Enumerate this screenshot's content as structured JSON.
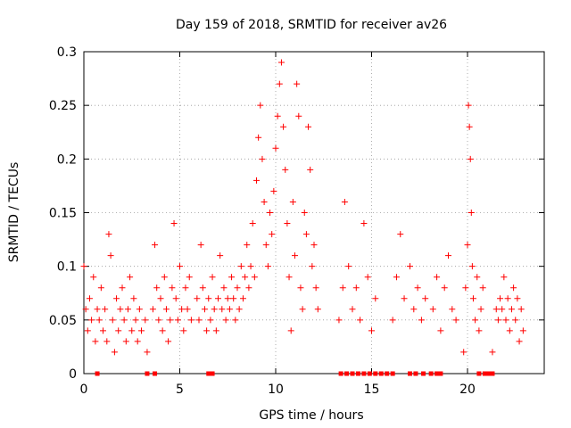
{
  "chart_data": {
    "type": "scatter",
    "title": "Day 159 of 2018, SRMTID for receiver av26",
    "xlabel": "GPS time / hours",
    "ylabel": "SRMTID / TECUs",
    "xlim": [
      0,
      24
    ],
    "ylim": [
      0,
      0.3
    ],
    "x_ticks": [
      0,
      5,
      10,
      15,
      20
    ],
    "x_tick_labels": [
      "0",
      "5",
      "10",
      "15",
      "20"
    ],
    "y_ticks": [
      0,
      0.05,
      0.1,
      0.15,
      0.2,
      0.25,
      0.3
    ],
    "y_tick_labels": [
      "0",
      "0.05",
      "0.1",
      "0.15",
      "0.2",
      "0.25",
      "0.3"
    ],
    "grid": true,
    "legend": "none",
    "colors": {
      "marker": "#ff0000",
      "grid": "#999999",
      "axis": "#000000"
    },
    "series": [
      {
        "name": "SRMTID",
        "marker": "plus",
        "points": [
          [
            0.0,
            0.1
          ],
          [
            0.1,
            0.06
          ],
          [
            0.2,
            0.04
          ],
          [
            0.3,
            0.07
          ],
          [
            0.4,
            0.05
          ],
          [
            0.5,
            0.09
          ],
          [
            0.6,
            0.03
          ],
          [
            0.7,
            0.06
          ],
          [
            0.8,
            0.05
          ],
          [
            0.9,
            0.08
          ],
          [
            1.0,
            0.04
          ],
          [
            1.1,
            0.06
          ],
          [
            1.2,
            0.03
          ],
          [
            1.3,
            0.13
          ],
          [
            1.4,
            0.11
          ],
          [
            1.5,
            0.05
          ],
          [
            1.6,
            0.02
          ],
          [
            1.7,
            0.07
          ],
          [
            1.8,
            0.04
          ],
          [
            1.9,
            0.06
          ],
          [
            2.0,
            0.08
          ],
          [
            2.1,
            0.05
          ],
          [
            2.2,
            0.03
          ],
          [
            2.3,
            0.06
          ],
          [
            2.4,
            0.09
          ],
          [
            2.5,
            0.04
          ],
          [
            2.6,
            0.07
          ],
          [
            2.7,
            0.05
          ],
          [
            2.8,
            0.03
          ],
          [
            2.9,
            0.06
          ],
          [
            3.0,
            0.04
          ],
          [
            3.2,
            0.05
          ],
          [
            3.3,
            0.02
          ],
          [
            3.6,
            0.06
          ],
          [
            3.7,
            0.12
          ],
          [
            3.8,
            0.08
          ],
          [
            3.9,
            0.05
          ],
          [
            4.0,
            0.07
          ],
          [
            4.1,
            0.04
          ],
          [
            4.2,
            0.09
          ],
          [
            4.3,
            0.06
          ],
          [
            4.4,
            0.03
          ],
          [
            4.5,
            0.05
          ],
          [
            4.6,
            0.08
          ],
          [
            4.7,
            0.14
          ],
          [
            4.8,
            0.07
          ],
          [
            4.9,
            0.05
          ],
          [
            5.0,
            0.1
          ],
          [
            5.1,
            0.06
          ],
          [
            5.2,
            0.04
          ],
          [
            5.3,
            0.08
          ],
          [
            5.4,
            0.06
          ],
          [
            5.5,
            0.09
          ],
          [
            5.6,
            0.05
          ],
          [
            5.9,
            0.07
          ],
          [
            6.0,
            0.05
          ],
          [
            6.1,
            0.12
          ],
          [
            6.2,
            0.08
          ],
          [
            6.3,
            0.06
          ],
          [
            6.4,
            0.04
          ],
          [
            6.5,
            0.07
          ],
          [
            6.6,
            0.05
          ],
          [
            6.7,
            0.09
          ],
          [
            6.8,
            0.06
          ],
          [
            6.9,
            0.04
          ],
          [
            7.0,
            0.07
          ],
          [
            7.1,
            0.11
          ],
          [
            7.2,
            0.06
          ],
          [
            7.3,
            0.08
          ],
          [
            7.4,
            0.05
          ],
          [
            7.5,
            0.07
          ],
          [
            7.6,
            0.06
          ],
          [
            7.7,
            0.09
          ],
          [
            7.8,
            0.07
          ],
          [
            7.9,
            0.05
          ],
          [
            8.0,
            0.08
          ],
          [
            8.1,
            0.06
          ],
          [
            8.2,
            0.1
          ],
          [
            8.3,
            0.07
          ],
          [
            8.4,
            0.09
          ],
          [
            8.5,
            0.12
          ],
          [
            8.6,
            0.08
          ],
          [
            8.7,
            0.1
          ],
          [
            8.8,
            0.14
          ],
          [
            8.9,
            0.09
          ],
          [
            9.0,
            0.18
          ],
          [
            9.1,
            0.22
          ],
          [
            9.2,
            0.25
          ],
          [
            9.3,
            0.2
          ],
          [
            9.4,
            0.16
          ],
          [
            9.5,
            0.12
          ],
          [
            9.6,
            0.1
          ],
          [
            9.7,
            0.15
          ],
          [
            9.8,
            0.13
          ],
          [
            9.9,
            0.17
          ],
          [
            10.0,
            0.21
          ],
          [
            10.1,
            0.24
          ],
          [
            10.2,
            0.27
          ],
          [
            10.3,
            0.29
          ],
          [
            10.4,
            0.23
          ],
          [
            10.5,
            0.19
          ],
          [
            10.6,
            0.14
          ],
          [
            10.7,
            0.09
          ],
          [
            10.8,
            0.04
          ],
          [
            10.9,
            0.16
          ],
          [
            11.0,
            0.11
          ],
          [
            11.1,
            0.27
          ],
          [
            11.2,
            0.24
          ],
          [
            11.3,
            0.08
          ],
          [
            11.4,
            0.06
          ],
          [
            11.5,
            0.15
          ],
          [
            11.6,
            0.13
          ],
          [
            11.7,
            0.23
          ],
          [
            11.8,
            0.19
          ],
          [
            11.9,
            0.1
          ],
          [
            12.0,
            0.12
          ],
          [
            12.1,
            0.08
          ],
          [
            12.2,
            0.06
          ],
          [
            13.3,
            0.05
          ],
          [
            13.5,
            0.08
          ],
          [
            13.6,
            0.16
          ],
          [
            13.8,
            0.1
          ],
          [
            14.0,
            0.06
          ],
          [
            14.2,
            0.08
          ],
          [
            14.4,
            0.05
          ],
          [
            14.6,
            0.14
          ],
          [
            14.8,
            0.09
          ],
          [
            15.0,
            0.04
          ],
          [
            15.2,
            0.07
          ],
          [
            16.1,
            0.05
          ],
          [
            16.3,
            0.09
          ],
          [
            16.5,
            0.13
          ],
          [
            16.7,
            0.07
          ],
          [
            17.0,
            0.1
          ],
          [
            17.2,
            0.06
          ],
          [
            17.4,
            0.08
          ],
          [
            17.6,
            0.05
          ],
          [
            17.8,
            0.07
          ],
          [
            18.2,
            0.06
          ],
          [
            18.4,
            0.09
          ],
          [
            18.6,
            0.04
          ],
          [
            18.8,
            0.08
          ],
          [
            19.0,
            0.11
          ],
          [
            19.2,
            0.06
          ],
          [
            19.4,
            0.05
          ],
          [
            19.8,
            0.02
          ],
          [
            19.9,
            0.08
          ],
          [
            20.0,
            0.12
          ],
          [
            20.05,
            0.25
          ],
          [
            20.1,
            0.23
          ],
          [
            20.15,
            0.2
          ],
          [
            20.2,
            0.15
          ],
          [
            20.25,
            0.1
          ],
          [
            20.3,
            0.07
          ],
          [
            20.4,
            0.05
          ],
          [
            20.5,
            0.09
          ],
          [
            20.6,
            0.04
          ],
          [
            20.7,
            0.06
          ],
          [
            20.8,
            0.08
          ],
          [
            21.3,
            0.02
          ],
          [
            21.5,
            0.06
          ],
          [
            21.6,
            0.05
          ],
          [
            21.7,
            0.07
          ],
          [
            21.8,
            0.06
          ],
          [
            21.9,
            0.09
          ],
          [
            22.0,
            0.05
          ],
          [
            22.1,
            0.07
          ],
          [
            22.2,
            0.04
          ],
          [
            22.3,
            0.06
          ],
          [
            22.4,
            0.08
          ],
          [
            22.5,
            0.05
          ],
          [
            22.6,
            0.07
          ],
          [
            22.7,
            0.03
          ],
          [
            22.8,
            0.06
          ],
          [
            22.9,
            0.04
          ]
        ]
      },
      {
        "name": "zero",
        "marker": "square",
        "x": [
          0.7,
          3.3,
          3.7,
          6.5,
          6.7,
          13.4,
          13.7,
          14.0,
          14.3,
          14.6,
          14.9,
          15.2,
          15.5,
          15.8,
          16.1,
          17.0,
          17.3,
          17.7,
          18.1,
          18.4,
          18.6,
          20.6,
          20.9,
          21.1,
          21.3
        ]
      }
    ]
  }
}
